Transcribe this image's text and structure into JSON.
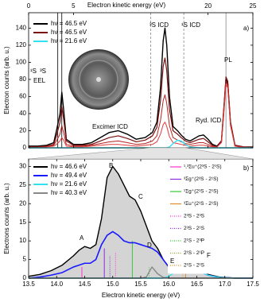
{
  "chart_data": [
    {
      "type": "line",
      "x_label": "Electron kinetic energy (eV)",
      "y_label": "Electron counts (arb. u.)",
      "xlim": [
        0,
        25
      ],
      "ylim": [
        0,
        158
      ],
      "xticks": [
        0,
        5,
        20,
        25
      ],
      "yticks": [
        0,
        20,
        40,
        60,
        80,
        100,
        120,
        140
      ],
      "x": [
        0,
        1,
        2,
        2.8,
        3.1,
        3.3,
        3.5,
        3.7,
        3.9,
        4.2,
        5,
        6,
        7,
        8,
        9,
        10,
        11,
        12,
        13,
        13.8,
        14.3,
        14.7,
        15,
        15.2,
        15.4,
        15.7,
        16.1,
        16.6,
        17,
        17.5,
        18,
        19,
        19.5,
        20,
        20.5,
        21,
        21.5,
        21.8,
        22,
        22.2,
        22.5,
        23,
        24,
        25
      ],
      "series": [
        {
          "name": "hν = 46.5 eV",
          "color": "#000000",
          "width": 1.4,
          "values": [
            2,
            2,
            3,
            6,
            20,
            30,
            40,
            65,
            45,
            10,
            4,
            4,
            6,
            12,
            18,
            20,
            16,
            10,
            12,
            18,
            30,
            70,
            125,
            140,
            120,
            60,
            25,
            20,
            15,
            10,
            8,
            14,
            15,
            10,
            4,
            2,
            8,
            50,
            80,
            75,
            30,
            3,
            1,
            1
          ]
        },
        {
          "name": "hν = 46.5 eV",
          "color": "#7a1010",
          "width": 1.2,
          "values": [
            1,
            1,
            2,
            4,
            14,
            22,
            30,
            48,
            34,
            8,
            3,
            3,
            4,
            8,
            12,
            14,
            11,
            7,
            9,
            14,
            24,
            55,
            95,
            105,
            90,
            45,
            20,
            16,
            12,
            8,
            6,
            10,
            11,
            7,
            3,
            1,
            8,
            52,
            83,
            78,
            30,
            3,
            1,
            1
          ]
        },
        {
          "color": "#b52020",
          "width": 1,
          "values": [
            1,
            1,
            1,
            3,
            8,
            12,
            16,
            26,
            18,
            4,
            2,
            2,
            3,
            5,
            7,
            8,
            6,
            4,
            5,
            8,
            14,
            32,
            55,
            62,
            52,
            26,
            12,
            9,
            7,
            5,
            4,
            6,
            6,
            4,
            2,
            1,
            7,
            48,
            78,
            72,
            28,
            2,
            1,
            0
          ]
        },
        {
          "color": "#e03a3a",
          "width": 1,
          "values": [
            0,
            0,
            1,
            2,
            4,
            6,
            8,
            12,
            9,
            2,
            1,
            1,
            2,
            3,
            4,
            4,
            3,
            2,
            3,
            4,
            7,
            16,
            27,
            30,
            25,
            13,
            6,
            5,
            4,
            3,
            2,
            3,
            3,
            2,
            1,
            1,
            6,
            45,
            74,
            70,
            26,
            2,
            0,
            0
          ]
        },
        {
          "name": "hν = 21.6 eV",
          "color": "#33e0f0",
          "width": 1.4,
          "values": [
            0,
            0,
            0,
            0,
            0,
            0,
            0,
            0,
            0,
            0,
            0,
            0,
            0,
            0,
            0,
            0,
            0,
            0,
            0,
            0,
            0,
            0,
            0,
            0,
            0,
            1,
            5,
            9,
            8,
            4,
            1,
            0,
            0,
            0,
            0,
            0,
            0,
            0,
            0,
            0,
            0,
            0,
            0,
            0
          ]
        }
      ],
      "reference_lines": [
        {
          "x": 3.25,
          "style": "solid",
          "color": "#000000"
        },
        {
          "x": 3.7,
          "style": "solid",
          "color": "#000000"
        },
        {
          "x": 13.6,
          "style": "dashed",
          "color": "#888888"
        },
        {
          "x": 17.3,
          "style": "dashed",
          "color": "#888888"
        },
        {
          "x": 22,
          "style": "solid",
          "color": "#888888"
        }
      ],
      "annotations": [
        "a)",
        "³S ICD",
        "¹S ICD",
        "PL",
        "Excimer ICD",
        "Ryd. ICD",
        "¹S",
        "³S",
        "EEL"
      ]
    },
    {
      "type": "line",
      "x_label": "Electron kinetic energy (eV)",
      "y_label": "Electrons counts (arb. u.)",
      "xlim": [
        13.5,
        17.5
      ],
      "ylim": [
        0,
        32
      ],
      "xticks": [
        13.5,
        {
          "value": 14,
          "label": "14.0"
        },
        14.5,
        {
          "value": 15,
          "label": "15.0"
        },
        15.5,
        {
          "value": 16,
          "label": "16.0"
        },
        16.5,
        {
          "value": 17,
          "label": "17.0"
        },
        17.5
      ],
      "yticks": [
        0,
        5,
        10,
        15,
        20,
        25,
        30
      ],
      "x": [
        13.5,
        13.7,
        13.9,
        14.1,
        14.3,
        14.4,
        14.5,
        14.6,
        14.7,
        14.8,
        14.9,
        15.0,
        15.1,
        15.2,
        15.3,
        15.4,
        15.5,
        15.6,
        15.7,
        15.8,
        15.9,
        16.0,
        16.1,
        16.2,
        16.3,
        16.4,
        16.5,
        16.6,
        16.7,
        16.9,
        17.2,
        17.5
      ],
      "series": [
        {
          "name": "hν = 46.6 eV",
          "color": "#000000",
          "width": 1.4,
          "fill": "#d4d4d4",
          "values": [
            0.5,
            1,
            2,
            3.5,
            6,
            7.5,
            8.5,
            8,
            9,
            16,
            27,
            30,
            28,
            25,
            22,
            21,
            18,
            14,
            10,
            8,
            5,
            3,
            2.5,
            3,
            4,
            4,
            3,
            2,
            1,
            0.3,
            0,
            0
          ]
        },
        {
          "name": "hν = 49.4 eV",
          "color": "#1a1aff",
          "width": 1.6,
          "values": [
            0,
            0.3,
            0.8,
            1.5,
            3,
            3.5,
            4,
            4,
            5,
            9,
            11.5,
            12.5,
            11.5,
            10,
            9.5,
            9.5,
            9,
            8.5,
            8,
            7,
            5,
            3,
            2,
            3,
            4,
            3.5,
            2.5,
            1.5,
            0.8,
            0.2,
            0,
            0
          ]
        },
        {
          "name": "hν = 21.6 eV",
          "color": "#33e0f0",
          "width": 1.4,
          "values": [
            0,
            0,
            0,
            0,
            0,
            0,
            0,
            0,
            0,
            0,
            0,
            0,
            0,
            0,
            0,
            0,
            0,
            0,
            0,
            0,
            0,
            0.5,
            1.5,
            3,
            4,
            3.5,
            2.5,
            1.5,
            0.8,
            0.2,
            0,
            0
          ]
        },
        {
          "name": "hν = 40.3 eV",
          "color": "#888888",
          "width": 1.4,
          "values": [
            0,
            0,
            0,
            0,
            0,
            0,
            0,
            0,
            0,
            0,
            0,
            0,
            0,
            0,
            0,
            0,
            0,
            0.3,
            3,
            1.2,
            0.2,
            0,
            0,
            0,
            0,
            0,
            0,
            0,
            0,
            0,
            0,
            0
          ]
        }
      ],
      "transitions": [
        {
          "name": "¹,³Σu⁺(2³S - 2¹S)",
          "color": "#ff33cc",
          "style": "solid",
          "x": 14.45,
          "y": 3
        },
        {
          "name": "³Σg⁺(2³S - 2¹S)",
          "color": "#8a2be2",
          "style": "solid",
          "x": 14.85,
          "y": 8
        },
        {
          "name": "¹Σg⁺(2¹S - 2¹S)",
          "color": "#33cc33",
          "style": "solid",
          "x": 15.35,
          "y": 10
        },
        {
          "name": "³Σu⁺(2¹S - 2¹S)",
          "color": "#e08a2e",
          "style": "solid",
          "x": 16.3,
          "y": 3
        },
        {
          "name": "2³S - 2³S",
          "color": "#ff33cc",
          "style": "dotted",
          "x": 15.05,
          "y": 7
        },
        {
          "name": "2³S - 2¹S",
          "color": "#8a2be2",
          "style": "dotted",
          "x": 14.95,
          "y": 6
        },
        {
          "name": "2¹S - 2³P",
          "color": "#33cc33",
          "style": "dotted",
          "x": 15.65,
          "y": 3
        },
        {
          "name": "2¹S - 2¹P",
          "color": "#88aa22",
          "style": "dotted",
          "x": 16.0,
          "y": 2
        },
        {
          "name": "2¹S - 2¹S",
          "color": "#e08a2e",
          "style": "dotted",
          "x": 16.25,
          "y": 2
        }
      ],
      "annotations": [
        "b)",
        "A",
        "B",
        "C",
        "D",
        "E",
        "F"
      ]
    }
  ]
}
